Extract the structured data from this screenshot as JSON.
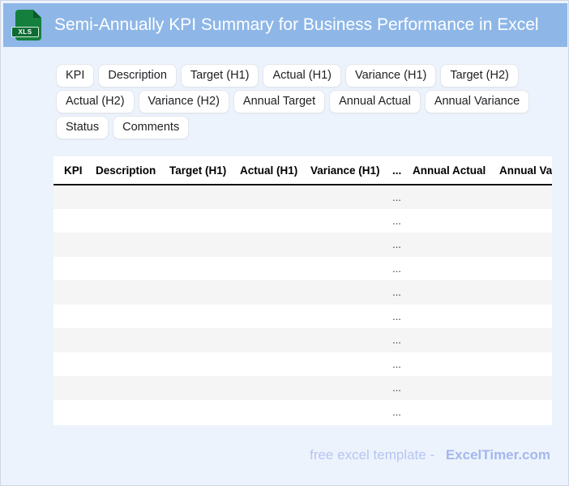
{
  "page": {
    "background_color": "#edf3fc",
    "border_color": "#ccd6e3"
  },
  "header": {
    "title": "Semi-Annually KPI Summary for Business Performance in Excel",
    "bar_color": "#8eb7e8",
    "icon_label": "XLS",
    "icon_color": "#15803d"
  },
  "chips": [
    "KPI",
    "Description",
    "Target (H1)",
    "Actual (H1)",
    "Variance (H1)",
    "Target (H2)",
    "Actual (H2)",
    "Variance (H2)",
    "Annual Target",
    "Annual Actual",
    "Annual Variance",
    "Status",
    "Comments"
  ],
  "table": {
    "columns": [
      "KPI",
      "Description",
      "Target (H1)",
      "Actual (H1)",
      "Variance (H1)",
      "...",
      "Annual Actual",
      "Annual Variance"
    ],
    "collapsed_column_index": 5,
    "row_count": 10,
    "cell_placeholder": "...",
    "stripe_color": "#f5f5f5"
  },
  "footer": {
    "prefix": "free excel template -",
    "brand": "ExcelTimer.com"
  }
}
